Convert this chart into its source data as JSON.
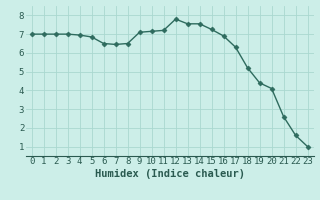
{
  "x": [
    0,
    1,
    2,
    3,
    4,
    5,
    6,
    7,
    8,
    9,
    10,
    11,
    12,
    13,
    14,
    15,
    16,
    17,
    18,
    19,
    20,
    21,
    22,
    23
  ],
  "y": [
    7.0,
    7.0,
    7.0,
    7.0,
    6.95,
    6.85,
    6.5,
    6.45,
    6.5,
    7.1,
    7.15,
    7.2,
    7.8,
    7.55,
    7.55,
    7.25,
    6.9,
    6.3,
    5.2,
    4.4,
    4.1,
    2.6,
    1.6,
    1.0
  ],
  "line_color": "#2e6b5e",
  "marker": "D",
  "marker_size": 2.5,
  "bg_color": "#cceee8",
  "grid_color": "#aad8d0",
  "xlabel": "Humidex (Indice chaleur)",
  "xlim": [
    -0.5,
    23.5
  ],
  "ylim": [
    0.5,
    8.5
  ],
  "yticks": [
    1,
    2,
    3,
    4,
    5,
    6,
    7,
    8
  ],
  "xticks": [
    0,
    1,
    2,
    3,
    4,
    5,
    6,
    7,
    8,
    9,
    10,
    11,
    12,
    13,
    14,
    15,
    16,
    17,
    18,
    19,
    20,
    21,
    22,
    23
  ],
  "font_color": "#2a5a50",
  "tick_fontsize": 6.5,
  "xlabel_fontsize": 7.5,
  "line_width": 1.0
}
